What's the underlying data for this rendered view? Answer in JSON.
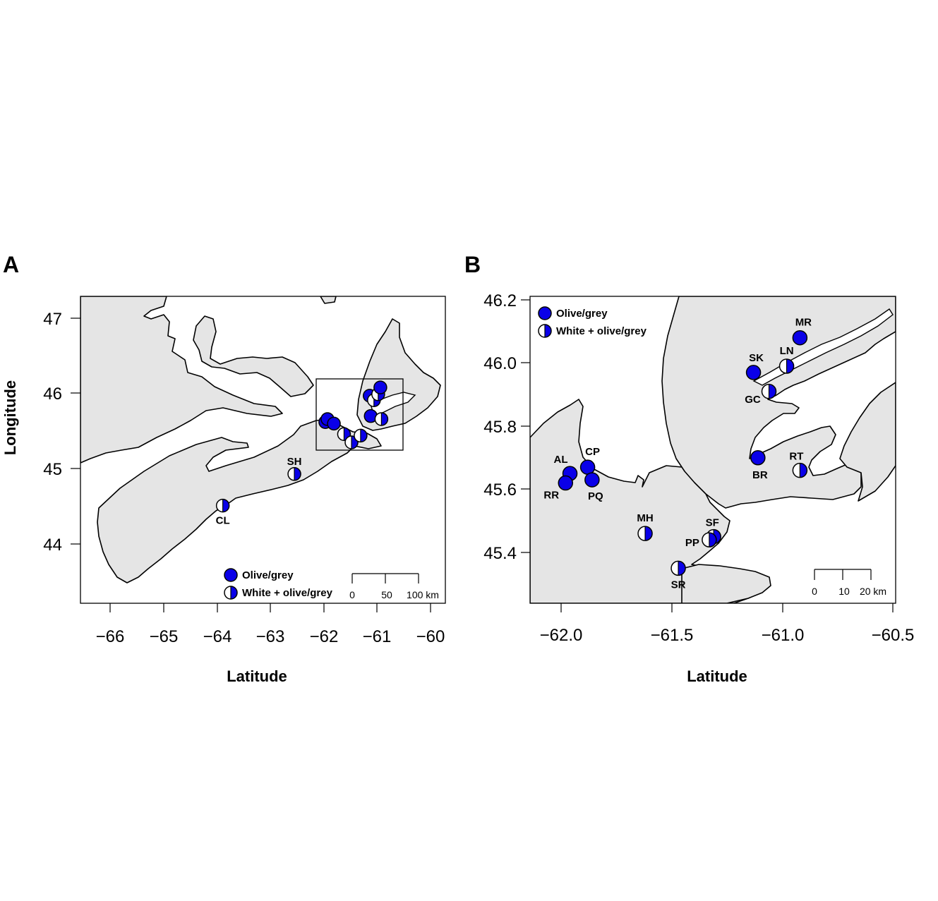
{
  "colors": {
    "land": "#e5e5e5",
    "water": "#ffffff",
    "marker_fill": "#0a00e8",
    "marker_stroke": "#000000"
  },
  "panels": [
    {
      "id": "A",
      "letter": "A",
      "xlabel": "Latitude",
      "ylabel": "Longitude",
      "x_ticks": [
        "−66",
        "−65",
        "−64",
        "−63",
        "−62",
        "−61",
        "−60"
      ],
      "y_ticks": [
        "47",
        "46",
        "45",
        "44"
      ],
      "legend": {
        "solid": "Olive/grey",
        "half": "White + olive/grey"
      },
      "scale_bar": [
        "0",
        "50",
        "100 km"
      ],
      "sites": [
        {
          "label": "SH",
          "type": "half",
          "lon": -62.55,
          "lat": 44.93
        },
        {
          "label": "CL",
          "type": "half",
          "lon": -63.89,
          "lat": 44.51
        }
      ],
      "cluster_points": [
        {
          "type": "solid",
          "lon": -61.97,
          "lat": 45.62
        },
        {
          "type": "solid",
          "lon": -61.93,
          "lat": 45.66
        },
        {
          "type": "solid",
          "lon": -61.81,
          "lat": 45.6
        },
        {
          "type": "half",
          "lon": -61.62,
          "lat": 45.46
        },
        {
          "type": "half",
          "lon": -61.48,
          "lat": 45.35
        },
        {
          "type": "half",
          "lon": -61.31,
          "lat": 45.44
        },
        {
          "type": "solid",
          "lon": -61.12,
          "lat": 45.7
        },
        {
          "type": "half",
          "lon": -60.92,
          "lat": 45.66
        },
        {
          "type": "solid",
          "lon": -61.14,
          "lat": 45.97
        },
        {
          "type": "half",
          "lon": -61.06,
          "lat": 45.91
        },
        {
          "type": "half",
          "lon": -60.98,
          "lat": 45.99
        },
        {
          "type": "solid",
          "lon": -60.94,
          "lat": 46.08
        }
      ]
    },
    {
      "id": "B",
      "letter": "B",
      "xlabel": "Latitude",
      "ylabel": "",
      "x_ticks": [
        "−62.0",
        "−61.5",
        "−61.0",
        "−60.5"
      ],
      "y_ticks": [
        "46.2",
        "46.0",
        "45.8",
        "45.6",
        "45.4"
      ],
      "legend": {
        "solid": "Olive/grey",
        "half": "White + olive/grey"
      },
      "scale_bar": [
        "0",
        "10",
        "20 km"
      ],
      "sites": [
        {
          "label": "MR",
          "type": "solid",
          "lon": -60.92,
          "lat": 46.08
        },
        {
          "label": "SK",
          "type": "solid",
          "lon": -61.13,
          "lat": 45.97
        },
        {
          "label": "LN",
          "type": "half",
          "lon": -60.98,
          "lat": 45.99
        },
        {
          "label": "GC",
          "type": "half",
          "lon": -61.06,
          "lat": 45.91
        },
        {
          "label": "CP",
          "type": "solid",
          "lon": -61.88,
          "lat": 45.67
        },
        {
          "label": "AL",
          "type": "solid",
          "lon": -61.96,
          "lat": 45.65
        },
        {
          "label": "RR",
          "type": "solid",
          "lon": -61.98,
          "lat": 45.62
        },
        {
          "label": "PQ",
          "type": "solid",
          "lon": -61.86,
          "lat": 45.63
        },
        {
          "label": "BR",
          "type": "solid",
          "lon": -61.11,
          "lat": 45.7
        },
        {
          "label": "RT",
          "type": "half",
          "lon": -60.92,
          "lat": 45.66
        },
        {
          "label": "MH",
          "type": "half",
          "lon": -61.62,
          "lat": 45.46
        },
        {
          "label": "SF",
          "type": "half",
          "lon": -61.31,
          "lat": 45.45
        },
        {
          "label": "PP",
          "type": "half",
          "lon": -61.33,
          "lat": 45.44
        },
        {
          "label": "SR",
          "type": "half",
          "lon": -61.47,
          "lat": 45.35
        }
      ]
    }
  ]
}
